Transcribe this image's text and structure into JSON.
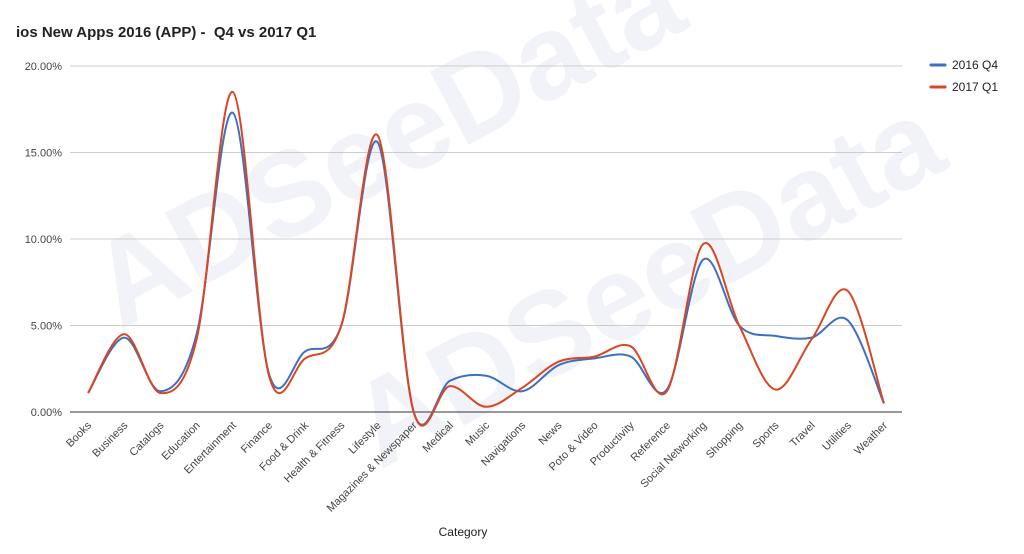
{
  "chart_data": {
    "type": "line",
    "title": "ios New Apps 2016 (APP) -  Q4 vs 2017 Q1",
    "xlabel": "Category",
    "ylabel": "",
    "ylim": [
      0,
      0.2
    ],
    "yticks": [
      "0.00%",
      "5.00%",
      "10.00%",
      "15.00%",
      "20.00%"
    ],
    "grid": true,
    "legend": "right",
    "smooth": true,
    "categories": [
      "Books",
      "Business",
      "Catalogs",
      "Education",
      "Entertainment",
      "Finance",
      "Food & Drink",
      "Health & Fitness",
      "Lifestyle",
      "Magazines & Newspaper",
      "Medical",
      "Music",
      "Navigations",
      "News",
      "Poto & Video",
      "Productivity",
      "Reference",
      "Social Networking",
      "Shopping",
      "Sports",
      "Travel",
      "Utilities",
      "Weather"
    ],
    "series": [
      {
        "name": "2016 Q4",
        "color": "#3d6fc4",
        "values": [
          0.011,
          0.043,
          0.012,
          0.045,
          0.173,
          0.022,
          0.035,
          0.05,
          0.156,
          0.0,
          0.018,
          0.021,
          0.012,
          0.027,
          0.031,
          0.032,
          0.013,
          0.088,
          0.05,
          0.044,
          0.043,
          0.053,
          0.005
        ]
      },
      {
        "name": "2017 Q1",
        "color": "#dc4522",
        "values": [
          0.011,
          0.045,
          0.011,
          0.042,
          0.185,
          0.021,
          0.031,
          0.05,
          0.16,
          0.0,
          0.015,
          0.003,
          0.014,
          0.029,
          0.032,
          0.038,
          0.012,
          0.097,
          0.05,
          0.013,
          0.042,
          0.07,
          0.005
        ]
      }
    ],
    "watermark": "ADSeeData"
  }
}
